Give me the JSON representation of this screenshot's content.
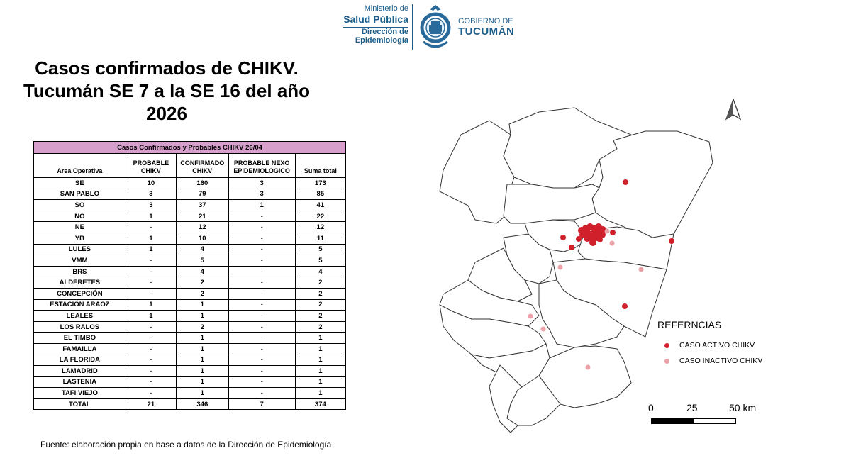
{
  "header": {
    "ministerio": "Ministerio de",
    "salud": "Salud Pública",
    "direccion": "Dirección de",
    "epidemiologia": "Epidemiología",
    "gobierno": "GOBIERNO DE",
    "tucuman": "TUCUMÁN"
  },
  "title": {
    "line1": "Casos confirmados de CHIKV.",
    "line2": "Tucumán SE 7 a la SE 16 del año",
    "line3": "2026"
  },
  "table": {
    "caption": "Casos Confirmados y Probables CHIKV 26/04",
    "headers": [
      "Area Operativa",
      "PROBABLE CHIKV",
      "CONFIRMADO CHIKV",
      "PROBABLE NEXO EPIDEMIOLOGICO",
      "Suma total"
    ],
    "rows": [
      [
        "SE",
        "10",
        "160",
        "3",
        "173"
      ],
      [
        "SAN PABLO",
        "3",
        "79",
        "3",
        "85"
      ],
      [
        "SO",
        "3",
        "37",
        "1",
        "41"
      ],
      [
        "NO",
        "1",
        "21",
        "-",
        "22"
      ],
      [
        "NE",
        "-",
        "12",
        "-",
        "12"
      ],
      [
        "YB",
        "1",
        "10",
        "-",
        "11"
      ],
      [
        "LULES",
        "1",
        "4",
        "-",
        "5"
      ],
      [
        "VMM",
        "-",
        "5",
        "-",
        "5"
      ],
      [
        "BRS",
        "-",
        "4",
        "-",
        "4"
      ],
      [
        "ALDERETES",
        "-",
        "2",
        "-",
        "2"
      ],
      [
        "CONCEPCIÓN",
        "-",
        "2",
        "-",
        "2"
      ],
      [
        "ESTACIÓN ARAOZ",
        "1",
        "1",
        "-",
        "2"
      ],
      [
        "LEALES",
        "1",
        "1",
        "-",
        "2"
      ],
      [
        "LOS RALOS",
        "-",
        "2",
        "-",
        "2"
      ],
      [
        "EL TIMBO",
        "-",
        "1",
        "-",
        "1"
      ],
      [
        "FAMAILLA",
        "-",
        "1",
        "-",
        "1"
      ],
      [
        "LA FLORIDA",
        "-",
        "1",
        "-",
        "1"
      ],
      [
        "LAMADRID",
        "-",
        "1",
        "-",
        "1"
      ],
      [
        "LASTENIA",
        "-",
        "1",
        "-",
        "1"
      ],
      [
        "TAFI VIEJO",
        "-",
        "1",
        "-",
        "1"
      ]
    ],
    "total": [
      "TOTAL",
      "21",
      "346",
      "7",
      "374"
    ]
  },
  "source": "Fuente: elaboración propia en base a datos de la Dirección de Epidemiología",
  "map": {
    "legend_title": "REFERNCIAS",
    "legend_active": "CASO ACTIVO CHIKV",
    "legend_inactive": "CASO INACTIVO CHIKV",
    "active_color": "#d0202b",
    "inactive_color": "#eba1a8",
    "scale": [
      "0",
      "25",
      "50 km"
    ],
    "north_icon": "north-arrow-icon"
  }
}
